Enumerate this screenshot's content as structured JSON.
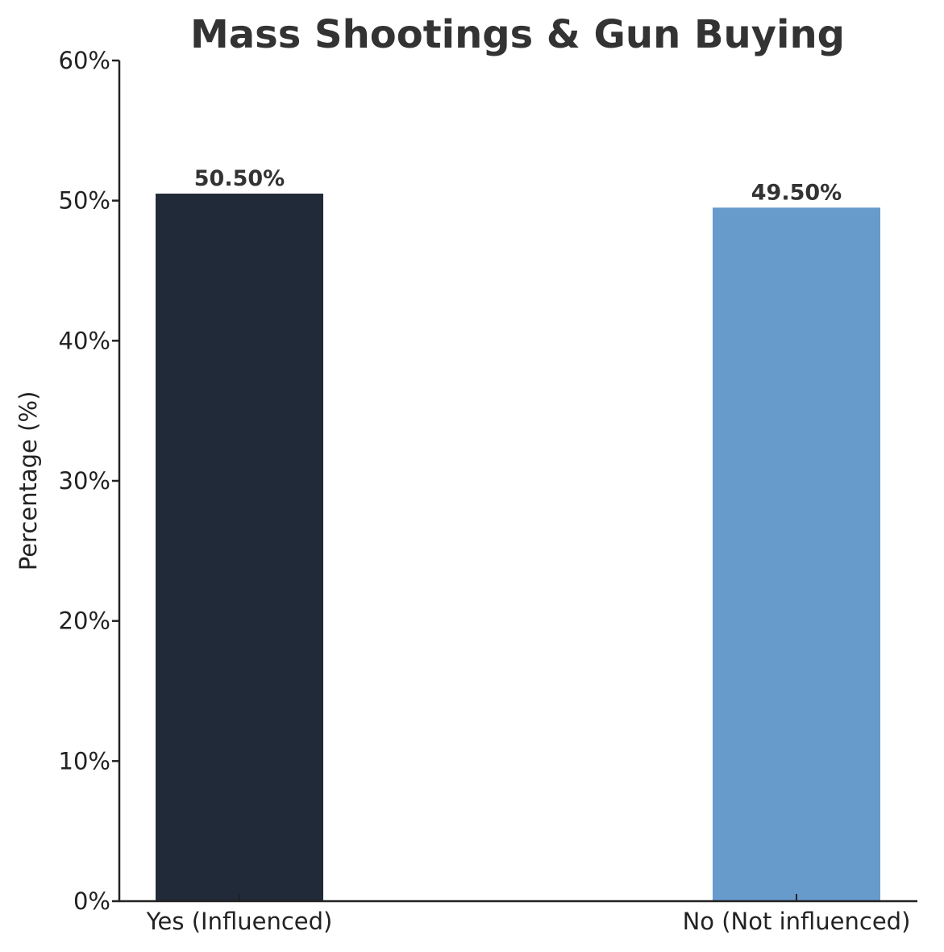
{
  "chart_data": {
    "type": "bar",
    "title": "Mass Shootings & Gun Buying",
    "xlabel": "",
    "ylabel": "Percentage (%)",
    "categories": [
      "Yes (Influenced)",
      "No (Not influenced)"
    ],
    "values": [
      50.5,
      49.5
    ],
    "value_labels": [
      "50.50%",
      "49.50%"
    ],
    "colors": [
      "#212a38",
      "#679bcc"
    ],
    "ylim": [
      0,
      60
    ],
    "yticks": [
      0,
      10,
      20,
      30,
      40,
      50,
      60
    ],
    "ytick_labels": [
      "0%",
      "10%",
      "20%",
      "30%",
      "40%",
      "50%",
      "60%"
    ],
    "grid": false,
    "legend": "none"
  }
}
